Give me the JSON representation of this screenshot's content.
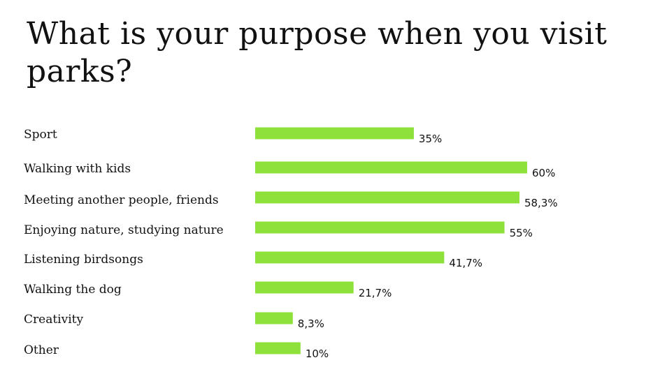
{
  "chart_data": {
    "type": "bar",
    "orientation": "horizontal",
    "title": "What is your purpose when you visit parks?",
    "categories": [
      "Sport",
      "Walking with kids",
      "Meeting another people, friends",
      "Enjoying nature, studying nature",
      "Listening birdsongs",
      "Walking the dog",
      "Creativity",
      "Other"
    ],
    "values": [
      35,
      60,
      58.3,
      55,
      41.7,
      21.7,
      8.3,
      10
    ],
    "value_labels": [
      "35%",
      "60%",
      "58,3%",
      "55%",
      "41,7%",
      "21,7%",
      "8,3%",
      "10%"
    ],
    "xlim": [
      0,
      60
    ],
    "grid": false,
    "legend": "none",
    "bar_color": "#8ee03a"
  }
}
